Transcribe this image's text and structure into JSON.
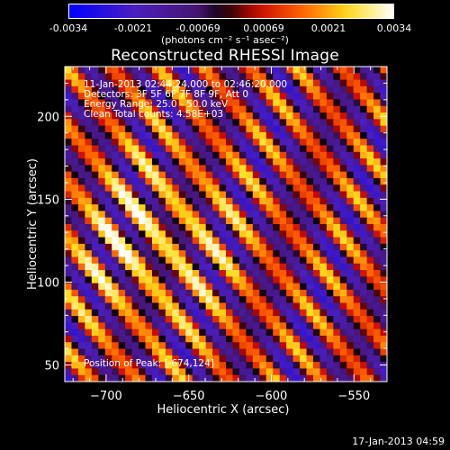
{
  "colorbar": {
    "tick_labels": [
      "-0.0034",
      "-0.0021",
      "-0.00069",
      "0.00069",
      "0.0021",
      "0.0034"
    ],
    "units": "(photons cm⁻² s⁻¹ asec⁻²)"
  },
  "title": "Reconstructed RHESSI Image",
  "annotations": {
    "time_range": "11-Jan-2013 02:44:24.000 to 02:46:20.000",
    "detectors": "Detectors: 3F 5F 6F 7F 8F 9F, Att 0",
    "energy": "Energy Range: 25.0 - 50.0 keV",
    "method": "Clean    Total counts: 4.58E+03",
    "peak": "Position of Peak: [-674,124]"
  },
  "footer_date": "17-Jan-2013 04:59",
  "chart_data": {
    "type": "heatmap",
    "title": "Reconstructed RHESSI Image",
    "xlabel": "Heliocentric X (arcsec)",
    "ylabel": "Heliocentric Y (arcsec)",
    "xlim": [
      -725,
      -530
    ],
    "ylim": [
      40,
      230
    ],
    "x_ticks": [
      -700,
      -650,
      -600,
      -550
    ],
    "x_tick_labels": [
      "−700",
      "−650",
      "−600",
      "−550"
    ],
    "y_ticks": [
      50,
      100,
      150,
      200
    ],
    "y_tick_labels": [
      "50",
      "100",
      "150",
      "200"
    ],
    "colorbar_range": [
      -0.0034,
      0.0034
    ],
    "colormap": "blue-purple-red-yellow-white",
    "peak_position": [
      -674,
      124
    ],
    "stripe_direction": "diagonal, lower-left to upper-right"
  }
}
